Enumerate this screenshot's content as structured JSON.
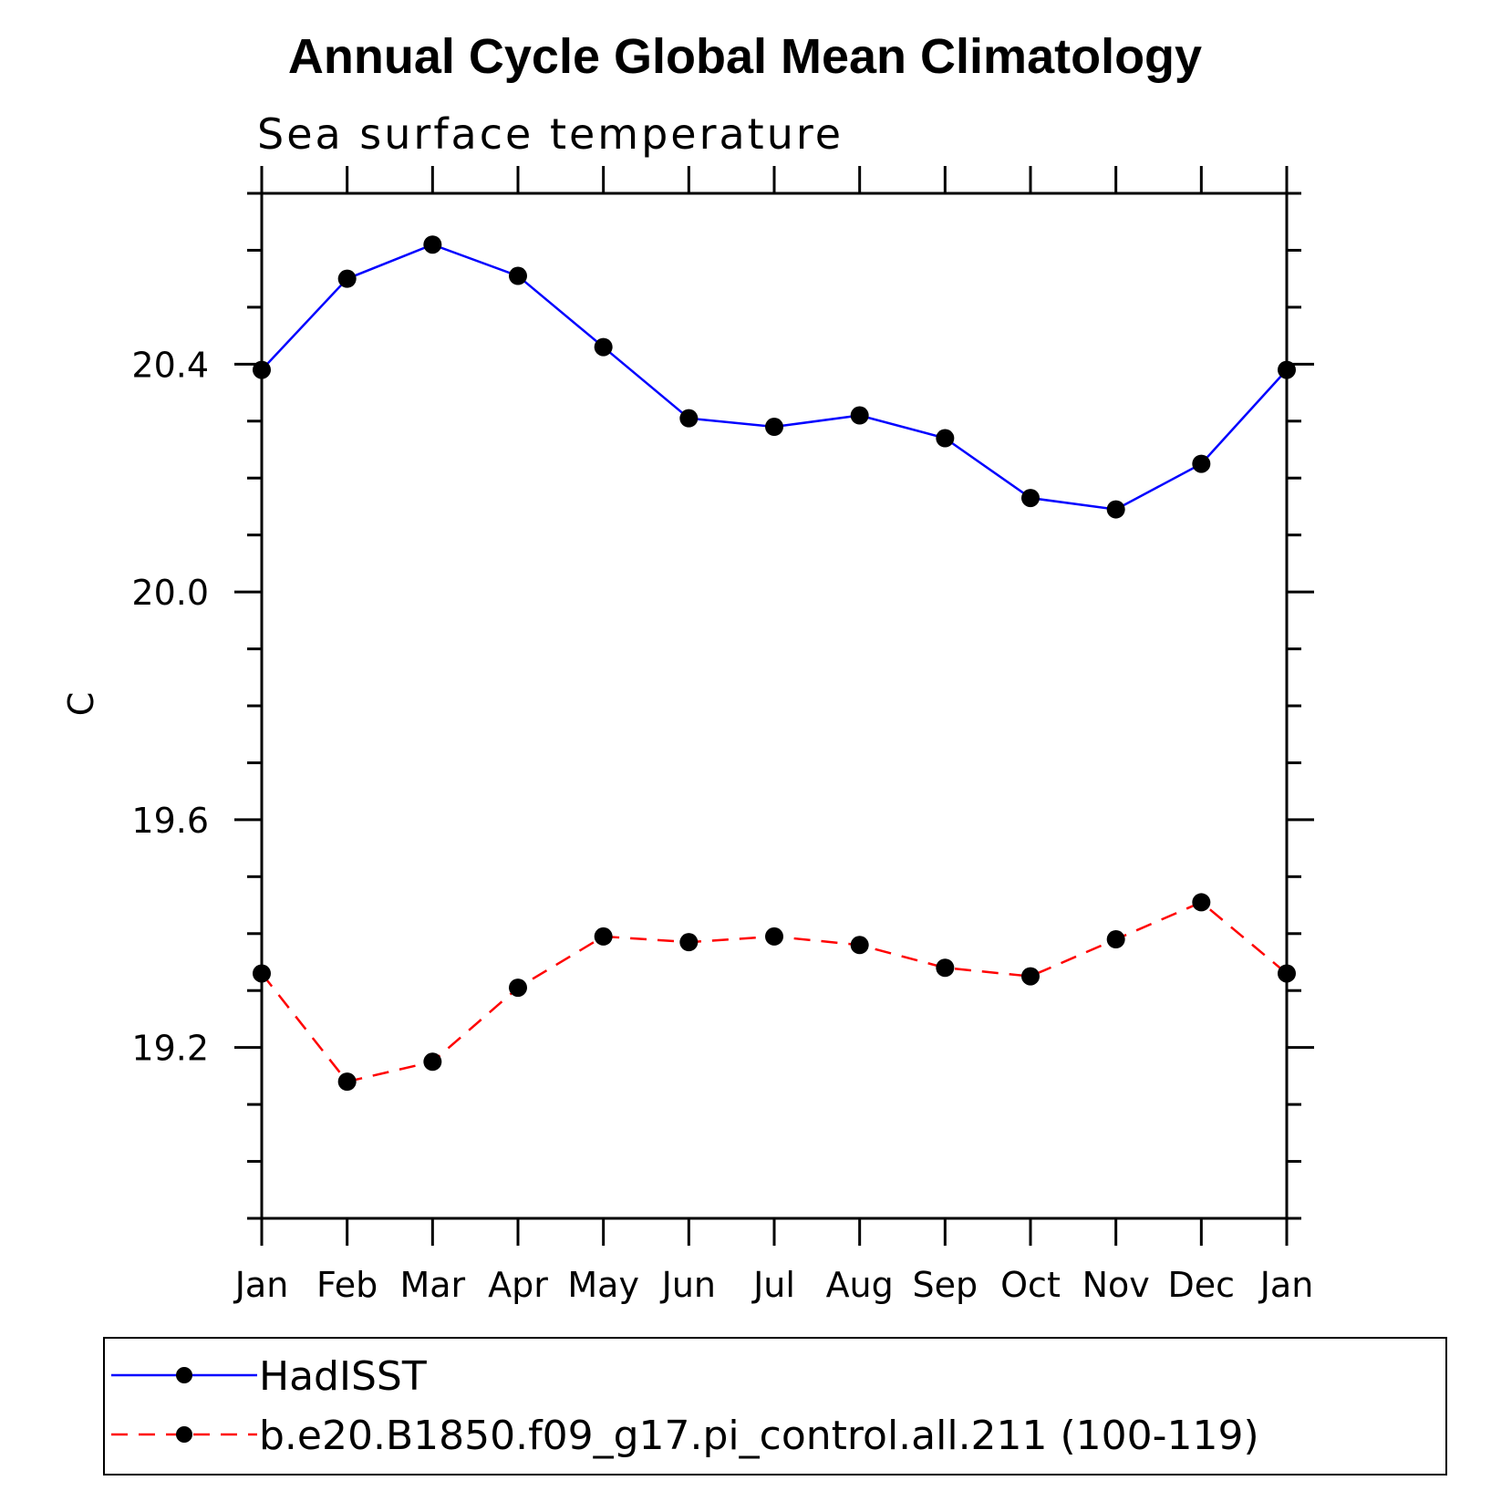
{
  "chart_data": {
    "type": "line",
    "title": "Annual Cycle Global Mean Climatology",
    "subtitle": "Sea surface temperature",
    "ylabel": "C",
    "xlabel": "",
    "categories": [
      "Jan",
      "Feb",
      "Mar",
      "Apr",
      "May",
      "Jun",
      "Jul",
      "Aug",
      "Sep",
      "Oct",
      "Nov",
      "Dec",
      "Jan"
    ],
    "ylim": [
      18.9,
      20.7
    ],
    "yticks": [
      "20.4",
      "20.0",
      "19.6",
      "19.2"
    ],
    "grid": false,
    "legend_position": "bottom",
    "series": [
      {
        "name": "HadISST",
        "color": "#0000ff",
        "line_style": "solid",
        "marker": "filled-circle",
        "values": [
          20.39,
          20.55,
          20.61,
          20.555,
          20.43,
          20.305,
          20.29,
          20.31,
          20.27,
          20.165,
          20.145,
          20.225,
          20.39
        ]
      },
      {
        "name": "b.e20.B1850.f09_g17.pi_control.all.211 (100-119)",
        "color": "#ff0000",
        "line_style": "dashed",
        "marker": "filled-circle",
        "values": [
          19.33,
          19.14,
          19.175,
          19.305,
          19.395,
          19.385,
          19.395,
          19.38,
          19.34,
          19.325,
          19.39,
          19.455,
          19.33
        ]
      }
    ]
  }
}
